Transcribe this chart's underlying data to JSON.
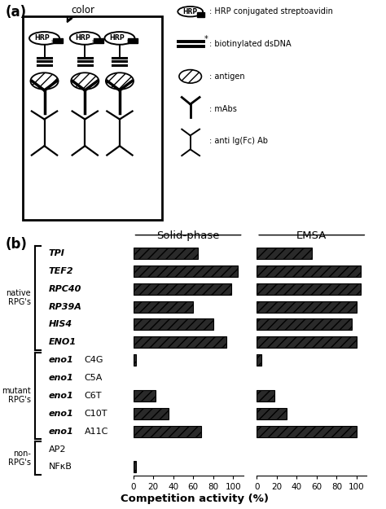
{
  "labels": [
    "TPI",
    "TEF2",
    "RPC40",
    "RP39A",
    "HIS4",
    "ENO1",
    "eno1 C4G",
    "eno1 C5A",
    "eno1 C6T",
    "eno1 C10T",
    "eno1 A11C",
    "AP2",
    "NFκB"
  ],
  "solid_phase": [
    65,
    105,
    98,
    60,
    80,
    93,
    3,
    0,
    22,
    35,
    68,
    0,
    3
  ],
  "emsa": [
    55,
    104,
    104,
    100,
    95,
    100,
    5,
    0,
    18,
    30,
    100,
    0,
    0
  ],
  "solid_phase_title": "Solid-phase",
  "emsa_title": "EMSA",
  "xlabel": "Competition activity (%)",
  "panel_b_label": "(b)",
  "panel_a_label": "(a)",
  "bar_hatch": "///",
  "bar_facecolor": "#2a2a2a",
  "bar_edgecolor": "#000000",
  "bg_color": "#ffffff",
  "xticks": [
    0,
    20,
    40,
    60,
    80,
    100
  ],
  "xlim": [
    0,
    110
  ],
  "groups": [
    {
      "label": "native\nRPG's",
      "start": 0,
      "end": 5
    },
    {
      "label": "mutant\nRPG's",
      "start": 6,
      "end": 10
    },
    {
      "label": "non-\nRPG's",
      "start": 11,
      "end": 12
    }
  ],
  "italic_labels": [
    "TPI",
    "TEF2",
    "RPC40",
    "RP39A",
    "HIS4",
    "ENO1"
  ],
  "legend_items": [
    {
      "type": "hrp",
      "text": ": HRP conjugated streptoavidin"
    },
    {
      "type": "dna",
      "text": ": biotinylated dsDNA"
    },
    {
      "type": "antigen",
      "text": ": antigen"
    },
    {
      "type": "mabs",
      "text": ": mAbs"
    },
    {
      "type": "anti",
      "text": ": anti Ig(Fc) Ab"
    }
  ]
}
